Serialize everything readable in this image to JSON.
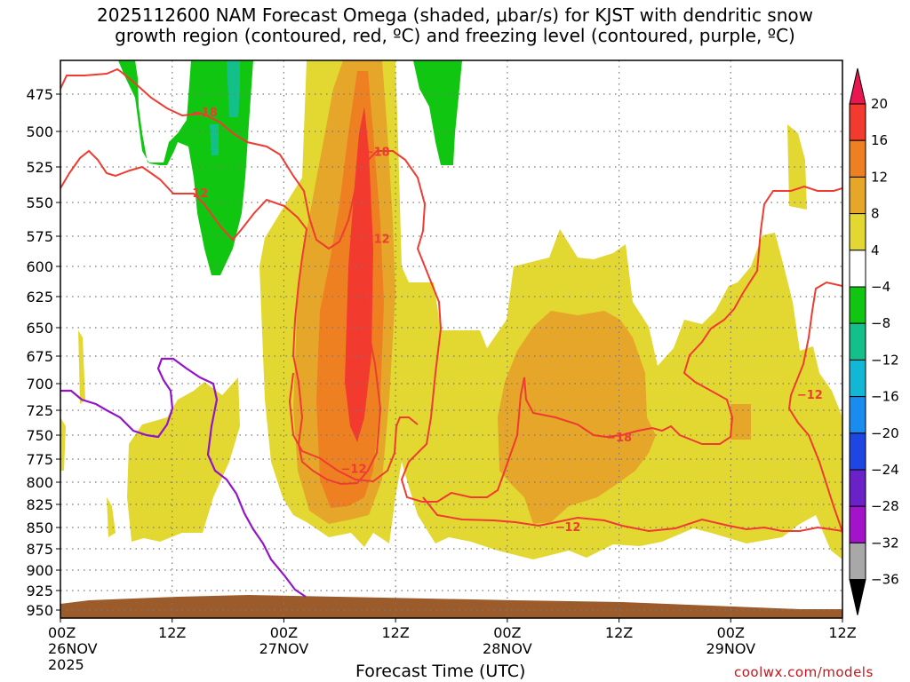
{
  "chart_data": {
    "type": "heatmap",
    "title_line1": "2025112600 NAM Forecast Omega (shaded, μbar/s) for KJST with dendritic snow",
    "title_line2": "growth region (contoured, red, ºC) and freezing level (contoured, purple, ºC)",
    "xlabel": "Forecast Time (UTC)",
    "ylabel": "",
    "x_ticks": [
      {
        "hour": 0,
        "line1": "00Z",
        "line2": "26NOV",
        "line3": "2025"
      },
      {
        "hour": 12,
        "line1": "12Z",
        "line2": "",
        "line3": ""
      },
      {
        "hour": 24,
        "line1": "00Z",
        "line2": "27NOV",
        "line3": ""
      },
      {
        "hour": 36,
        "line1": "12Z",
        "line2": "",
        "line3": ""
      },
      {
        "hour": 48,
        "line1": "00Z",
        "line2": "28NOV",
        "line3": ""
      },
      {
        "hour": 60,
        "line1": "12Z",
        "line2": "",
        "line3": ""
      },
      {
        "hour": 72,
        "line1": "00Z",
        "line2": "29NOV",
        "line3": ""
      },
      {
        "hour": 84,
        "line1": "12Z",
        "line2": "",
        "line3": ""
      }
    ],
    "y_ticks": [
      475,
      500,
      525,
      550,
      575,
      600,
      625,
      650,
      675,
      700,
      725,
      750,
      775,
      800,
      825,
      850,
      875,
      900,
      925,
      950
    ],
    "ylim_hpa": [
      455,
      960
    ],
    "xlim_hours": [
      0,
      84
    ],
    "colorbar": {
      "ticks": [
        "20",
        "16",
        "12",
        "8",
        "4",
        "−4",
        "−8",
        "−12",
        "−16",
        "−20",
        "−24",
        "−28",
        "−32",
        "−36"
      ],
      "colors": [
        "#e8174f",
        "#f23a2e",
        "#ee8022",
        "#e5a629",
        "#e3d832",
        "#ffffff",
        "#11c611",
        "#14c08a",
        "#12b7d6",
        "#1a8bef",
        "#1e46e2",
        "#6a22c8",
        "#a313c9",
        "#a8a8a8",
        "#000000"
      ]
    },
    "contour_labels": [
      {
        "text": "−18",
        "hour": 15.5,
        "hpa": 487
      },
      {
        "text": "−12",
        "hour": 14.5,
        "hpa": 543
      },
      {
        "text": "−18",
        "hour": 34.0,
        "hpa": 514
      },
      {
        "text": "−12",
        "hour": 34.0,
        "hpa": 577
      },
      {
        "text": "−12",
        "hour": 31.5,
        "hpa": 785
      },
      {
        "text": "−18",
        "hour": 60.0,
        "hpa": 752
      },
      {
        "text": "−12",
        "hour": 54.5,
        "hpa": 849
      },
      {
        "text": "−12",
        "hour": 80.5,
        "hpa": 710
      }
    ],
    "legend_position": "right"
  },
  "footer": {
    "credit": "coolwx.com/models"
  }
}
